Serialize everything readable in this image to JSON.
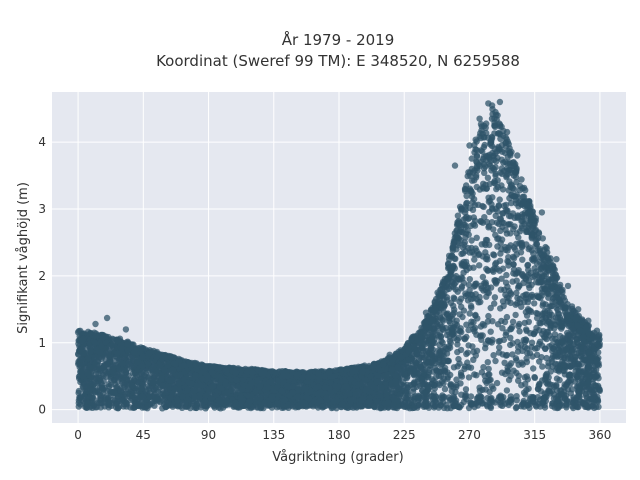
{
  "chart_data": {
    "type": "scatter",
    "title_lines": [
      "År 1979 - 2019",
      "Koordinat (Sweref 99 TM): E 348520, N 6259588"
    ],
    "xlabel": "Vågriktning (grader)",
    "ylabel": "Signifikant våghöjd (m)",
    "xlim": [
      -18,
      378
    ],
    "ylim": [
      -0.2,
      4.75
    ],
    "x_ticks": [
      0,
      45,
      90,
      135,
      180,
      225,
      270,
      315,
      360
    ],
    "y_ticks": [
      0,
      1,
      2,
      3,
      4
    ],
    "grid": true,
    "legend": "none",
    "colors": {
      "points": "#2f5469",
      "plot_bg": "#e5e8f0",
      "grid": "#ffffff"
    },
    "series": [
      {
        "envelope_upper": [
          [
            0,
            1.2
          ],
          [
            10,
            1.15
          ],
          [
            20,
            1.1
          ],
          [
            30,
            1.05
          ],
          [
            45,
            0.92
          ],
          [
            60,
            0.82
          ],
          [
            75,
            0.72
          ],
          [
            90,
            0.65
          ],
          [
            110,
            0.62
          ],
          [
            135,
            0.58
          ],
          [
            155,
            0.56
          ],
          [
            175,
            0.58
          ],
          [
            195,
            0.64
          ],
          [
            210,
            0.72
          ],
          [
            225,
            0.92
          ],
          [
            240,
            1.35
          ],
          [
            250,
            1.8
          ],
          [
            258,
            2.4
          ],
          [
            265,
            3.2
          ],
          [
            272,
            3.9
          ],
          [
            278,
            4.3
          ],
          [
            284,
            4.55
          ],
          [
            290,
            4.4
          ],
          [
            297,
            4.0
          ],
          [
            305,
            3.5
          ],
          [
            315,
            2.9
          ],
          [
            325,
            2.3
          ],
          [
            335,
            1.75
          ],
          [
            345,
            1.4
          ],
          [
            355,
            1.2
          ],
          [
            360,
            1.1
          ]
        ],
        "baseline": 0.02,
        "outliers": [
          [
            20,
            1.37
          ],
          [
            12,
            1.28
          ],
          [
            33,
            1.2
          ],
          [
            277,
            4.35
          ],
          [
            283,
            4.58
          ],
          [
            291,
            4.6
          ],
          [
            288,
            4.45
          ],
          [
            296,
            4.15
          ],
          [
            303,
            3.8
          ],
          [
            312,
            3.05
          ],
          [
            320,
            2.95
          ],
          [
            330,
            2.25
          ],
          [
            338,
            1.85
          ],
          [
            345,
            1.5
          ],
          [
            352,
            1.33
          ],
          [
            358,
            1.18
          ],
          [
            262,
            2.9
          ],
          [
            256,
            2.3
          ],
          [
            248,
            1.75
          ],
          [
            240,
            1.45
          ],
          [
            230,
            1.05
          ],
          [
            215,
            0.82
          ],
          [
            260,
            3.65
          ],
          [
            270,
            3.95
          ]
        ]
      }
    ]
  }
}
